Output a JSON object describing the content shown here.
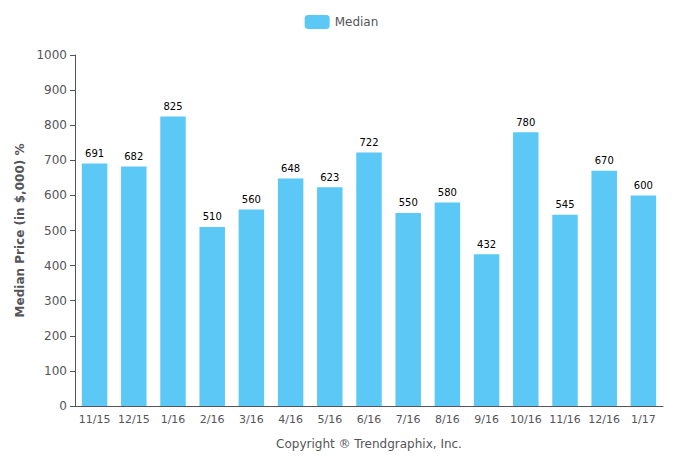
{
  "chart_data": {
    "type": "bar",
    "categories": [
      "11/15",
      "12/15",
      "1/16",
      "2/16",
      "3/16",
      "4/16",
      "5/16",
      "6/16",
      "7/16",
      "8/16",
      "9/16",
      "10/16",
      "11/16",
      "12/16",
      "1/17"
    ],
    "series": [
      {
        "name": "Median",
        "color": "#5BC8F5",
        "values": [
          691,
          682,
          825,
          510,
          560,
          648,
          623,
          722,
          550,
          580,
          432,
          780,
          545,
          670,
          600
        ]
      }
    ],
    "ylim": [
      0,
      1000
    ],
    "yticks": [
      0,
      100,
      200,
      300,
      400,
      500,
      600,
      700,
      800,
      900,
      1000
    ],
    "ylabel": "Median Price (in $,000) %",
    "xlabel": "Copyright ® Trendgraphix, Inc.",
    "grid": false,
    "legend": "top",
    "data_labels": true
  }
}
